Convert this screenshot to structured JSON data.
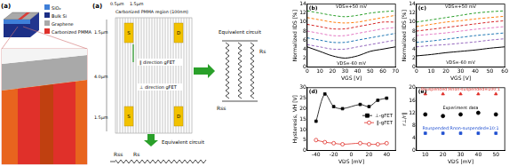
{
  "diagram": {
    "schematic": {
      "label": "(a)",
      "legend": [
        {
          "text": "SiO₂",
          "color": "#3f7fd8"
        },
        {
          "text": "Bulk Si",
          "color": "#1c2f86"
        },
        {
          "text": "Graphene",
          "color": "#a9a9a9"
        },
        {
          "text": "Carbonized PMMA",
          "color": "#e0302a"
        }
      ]
    },
    "device": {
      "label": "(a)",
      "top_dims": [
        "0.5μm",
        "1.5μm"
      ],
      "region": "Carbonized PMMA region (100nm)",
      "side_dims": [
        "1.5μm",
        "4.0μm",
        "1.5μm"
      ],
      "pads": [
        "S",
        "D",
        "S",
        "D"
      ],
      "directions": [
        "‖ direction gFET",
        "⊥ direction gFET"
      ],
      "circuit_right": {
        "title": "Equivalent circuit",
        "labels": [
          "Rs",
          "Rss"
        ]
      },
      "circuit_bottom": {
        "title": "Equivalent circuit",
        "labels": [
          "Rss",
          "Rs"
        ]
      }
    }
  },
  "chart_data": [
    {
      "type": "line",
      "title": "(b)",
      "x_label": "VGS [V]",
      "y_label": "Normalized IDS [%]",
      "x": [
        0,
        10,
        20,
        30,
        40,
        50,
        60,
        70
      ],
      "series": [
        {
          "color": "#2ca02c",
          "line_style": "dashed",
          "values": [
            12.5,
            12,
            11.5,
            11.2,
            11.5,
            12,
            12.3,
            12.5
          ]
        },
        {
          "color": "#ff7f0e",
          "line_style": "dashed",
          "values": [
            11,
            10.5,
            10,
            9.8,
            10,
            10.5,
            11,
            11.5
          ]
        },
        {
          "color": "#d62728",
          "line_style": "dashed",
          "values": [
            9.5,
            9,
            8.5,
            8.5,
            9,
            9.5,
            10,
            10
          ]
        },
        {
          "color": "#e377c2",
          "line_style": "dashed",
          "values": [
            8,
            7.5,
            7,
            7,
            7.5,
            8,
            8.5,
            8.8
          ]
        },
        {
          "color": "#1f77b4",
          "line_style": "dashed",
          "values": [
            6.5,
            6,
            5.5,
            5.5,
            6,
            6.5,
            7,
            7.5
          ]
        },
        {
          "color": "#9467bd",
          "line_style": "dashed",
          "values": [
            5,
            4.5,
            4,
            4,
            4.5,
            5,
            5.5,
            6
          ]
        },
        {
          "color": "#000000",
          "line_style": "solid",
          "values": [
            4.5,
            3.5,
            2.5,
            2,
            2.5,
            3.5,
            4,
            4.5
          ]
        }
      ],
      "annotations": [
        {
          "text": "VDS=+50 mV",
          "x": 35,
          "y": 13.4
        },
        {
          "text": "VDS=-60 mV",
          "x": 35,
          "y": 0.7
        }
      ],
      "xlim": [
        0,
        70
      ],
      "xticks": [
        0,
        10,
        20,
        30,
        40,
        50,
        60,
        70
      ],
      "ylim": [
        0,
        14
      ],
      "yticks": [
        0,
        2,
        4,
        6,
        8,
        10,
        12,
        14
      ],
      "grid": false,
      "legend": false
    },
    {
      "type": "line",
      "title": "(c)",
      "x_label": "VGS [V]",
      "y_label": "Normalized IDS [%]",
      "x": [
        0,
        10,
        20,
        30,
        40,
        50,
        60
      ],
      "series": [
        {
          "color": "#2ca02c",
          "line_style": "dashed",
          "values": [
            10,
            10.5,
            11,
            11.5,
            12,
            12.3,
            12.5
          ]
        },
        {
          "color": "#ff7f0e",
          "line_style": "dashed",
          "values": [
            9,
            9.5,
            10,
            10.3,
            10.7,
            11,
            11.3
          ]
        },
        {
          "color": "#d62728",
          "line_style": "dashed",
          "values": [
            8,
            8.4,
            8.8,
            9.2,
            9.6,
            10,
            10.3
          ]
        },
        {
          "color": "#e377c2",
          "line_style": "dashed",
          "values": [
            7,
            7.3,
            7.6,
            8,
            8.4,
            8.7,
            9
          ]
        },
        {
          "color": "#1f77b4",
          "line_style": "dashed",
          "values": [
            5.5,
            5.8,
            6.2,
            6.6,
            7,
            7.3,
            7.6
          ]
        },
        {
          "color": "#9467bd",
          "line_style": "dashed",
          "values": [
            4.5,
            4.8,
            5,
            5.3,
            5.6,
            6,
            6.3
          ]
        },
        {
          "color": "#000000",
          "line_style": "solid",
          "values": [
            2.5,
            2.8,
            3.2,
            3.5,
            3.8,
            4.2,
            4.5
          ]
        }
      ],
      "annotations": [
        {
          "text": "VDS=+50 mV",
          "x": 30,
          "y": 13.4
        },
        {
          "text": "VDS=-60 mV",
          "x": 30,
          "y": 0.9
        }
      ],
      "xlim": [
        0,
        60
      ],
      "xticks": [
        0,
        10,
        20,
        30,
        40,
        50,
        60
      ],
      "ylim": [
        0,
        14
      ],
      "yticks": [
        0,
        2,
        4,
        6,
        8,
        10,
        12,
        14
      ],
      "grid": false,
      "legend": false
    },
    {
      "type": "scatter",
      "title": "(d)",
      "x_label": "VDS [mV]",
      "y_label": "Hysteresis, VH [V]",
      "x": [
        -40,
        -30,
        -20,
        -10,
        10,
        20,
        30,
        40
      ],
      "series": [
        {
          "name": "⊥-gFET",
          "color": "#000000",
          "marker": "square",
          "line_style": "solid",
          "values": [
            14,
            27,
            21,
            20,
            22,
            21,
            24,
            25
          ]
        },
        {
          "name": "‖-gFET",
          "color": "#e0302a",
          "marker": "open_circle",
          "line_style": "solid",
          "values": [
            5,
            4,
            3.5,
            3,
            3.5,
            3,
            3,
            3.5
          ]
        }
      ],
      "xlim": [
        -50,
        50
      ],
      "xticks": [
        -40,
        -20,
        0,
        20,
        40
      ],
      "ylim": [
        0,
        30
      ],
      "yticks": [
        0,
        5,
        10,
        15,
        20,
        25,
        30
      ],
      "grid": false,
      "legend": "right"
    },
    {
      "type": "scatter",
      "title": "(e)",
      "x_label": "VDS [mV]",
      "y_label": "r⊥/r‖",
      "x": [
        10,
        20,
        30,
        40,
        50
      ],
      "series": [
        {
          "name": "Rsuspended:Rnon-suspended=100:1",
          "color": "#e0302a",
          "marker": "triangle",
          "values": [
            18,
            18,
            18,
            18,
            18
          ]
        },
        {
          "name": "Experiment data",
          "color": "#000000",
          "marker": "circle",
          "values": [
            11.5,
            11,
            11.5,
            12,
            11.5
          ]
        },
        {
          "name": "Rsuspended:Rnon-suspended=10:1",
          "color": "#1f4fd0",
          "marker": "square",
          "values": [
            5.5,
            5.5,
            5.5,
            5.5,
            5.5
          ]
        }
      ],
      "xlim": [
        5,
        55
      ],
      "xticks": [
        10,
        20,
        30,
        40,
        50
      ],
      "ylim": [
        0,
        20
      ],
      "yticks": [
        0,
        4,
        8,
        12,
        16,
        20
      ],
      "grid": false,
      "legend": "inline"
    }
  ]
}
